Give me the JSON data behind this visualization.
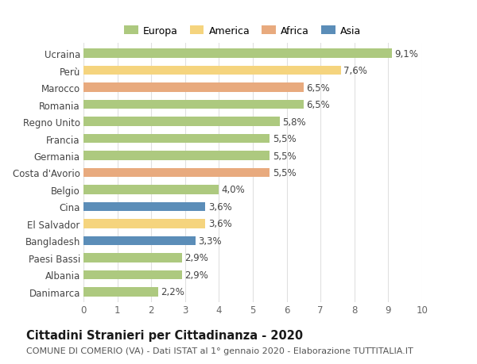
{
  "countries": [
    "Ucraina",
    "Perù",
    "Marocco",
    "Romania",
    "Regno Unito",
    "Francia",
    "Germania",
    "Costa d'Avorio",
    "Belgio",
    "Cina",
    "El Salvador",
    "Bangladesh",
    "Paesi Bassi",
    "Albania",
    "Danimarca"
  ],
  "values": [
    9.1,
    7.6,
    6.5,
    6.5,
    5.8,
    5.5,
    5.5,
    5.5,
    4.0,
    3.6,
    3.6,
    3.3,
    2.9,
    2.9,
    2.2
  ],
  "labels": [
    "9,1%",
    "7,6%",
    "6,5%",
    "6,5%",
    "5,8%",
    "5,5%",
    "5,5%",
    "5,5%",
    "4,0%",
    "3,6%",
    "3,6%",
    "3,3%",
    "2,9%",
    "2,9%",
    "2,2%"
  ],
  "continents": [
    "Europa",
    "America",
    "Africa",
    "Europa",
    "Europa",
    "Europa",
    "Europa",
    "Africa",
    "Europa",
    "Asia",
    "America",
    "Asia",
    "Europa",
    "Europa",
    "Europa"
  ],
  "colors": {
    "Europa": "#adc97f",
    "America": "#f5d47e",
    "Africa": "#e8aa7e",
    "Asia": "#5b8db8"
  },
  "legend_order": [
    "Europa",
    "America",
    "Africa",
    "Asia"
  ],
  "title": "Cittadini Stranieri per Cittadinanza - 2020",
  "subtitle": "COMUNE DI COMERIO (VA) - Dati ISTAT al 1° gennaio 2020 - Elaborazione TUTTITALIA.IT",
  "xlim": [
    0,
    10
  ],
  "xticks": [
    0,
    1,
    2,
    3,
    4,
    5,
    6,
    7,
    8,
    9,
    10
  ],
  "background_color": "#ffffff",
  "grid_color": "#e0e0e0",
  "bar_height": 0.55,
  "label_fontsize": 8.5,
  "tick_fontsize": 8.5,
  "title_fontsize": 10.5,
  "subtitle_fontsize": 8.0
}
